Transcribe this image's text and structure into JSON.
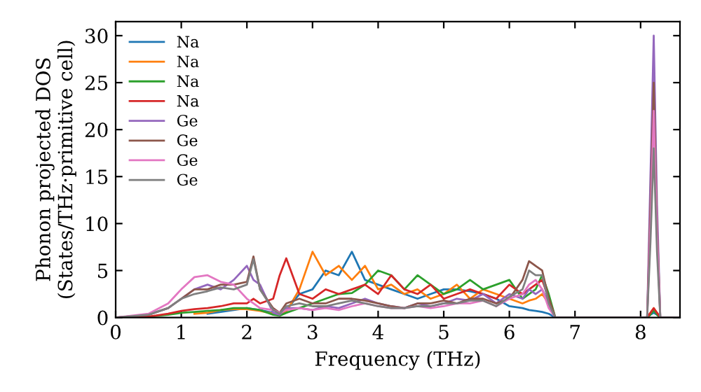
{
  "chart_data": {
    "type": "line",
    "xlabel": "Frequency (THz)",
    "ylabel": "Phonon projected DOS\n(States/THz·primitive cell)",
    "x": [
      0,
      0.5,
      0.8,
      1.0,
      1.2,
      1.4,
      1.6,
      1.8,
      2.0,
      2.1,
      2.2,
      2.4,
      2.5,
      2.6,
      2.8,
      3.0,
      3.2,
      3.4,
      3.6,
      3.8,
      4.0,
      4.2,
      4.4,
      4.6,
      4.8,
      5.0,
      5.2,
      5.4,
      5.6,
      5.8,
      6.0,
      6.2,
      6.3,
      6.4,
      6.5,
      6.6,
      6.7,
      8.0,
      8.1,
      8.15,
      8.2,
      8.25,
      8.3,
      8.6
    ],
    "xlim": [
      0,
      8.6
    ],
    "ylim": [
      0,
      31.5
    ],
    "xticks": [
      0,
      1,
      2,
      3,
      4,
      5,
      6,
      7,
      8
    ],
    "yticks": [
      0,
      5,
      10,
      15,
      20,
      25,
      30
    ],
    "legend": "top left",
    "grid": false,
    "series": [
      {
        "name": "Na",
        "color": "#1f77b4",
        "values": [
          null,
          null,
          null,
          null,
          null,
          0.4,
          0.6,
          0.8,
          1.0,
          0.9,
          0.8,
          0.5,
          0.3,
          0.8,
          2.5,
          3.0,
          5.0,
          4.5,
          7.0,
          4.0,
          3.5,
          3.0,
          2.5,
          2.0,
          2.5,
          3.0,
          3.0,
          2.8,
          2.5,
          2.0,
          1.2,
          1.0,
          0.8,
          0.7,
          0.6,
          0.4,
          0,
          0,
          0,
          0.3,
          0.5,
          0.3,
          0,
          0
        ]
      },
      {
        "name": "Na",
        "color": "#ff7f0e",
        "values": [
          null,
          null,
          null,
          null,
          0.4,
          0.5,
          0.8,
          0.9,
          0.9,
          0.8,
          0.7,
          0.4,
          0.2,
          0.6,
          3.0,
          7.0,
          4.5,
          5.5,
          4.0,
          5.5,
          3.0,
          3.5,
          2.5,
          3.0,
          2.0,
          2.5,
          3.5,
          2.0,
          3.0,
          2.5,
          2.0,
          1.5,
          1.8,
          2.0,
          2.5,
          1.5,
          0,
          0,
          0,
          0.5,
          1.0,
          0.5,
          0,
          0
        ]
      },
      {
        "name": "Na",
        "color": "#2ca02c",
        "values": [
          0,
          0.1,
          0.3,
          0.5,
          0.6,
          0.7,
          0.8,
          1.0,
          1.0,
          0.9,
          0.8,
          0.3,
          0.2,
          0.5,
          1.0,
          1.5,
          2.0,
          2.5,
          2.6,
          3.5,
          5.0,
          4.5,
          3.0,
          4.5,
          3.5,
          2.5,
          3.0,
          4.0,
          3.0,
          3.5,
          4.0,
          2.0,
          2.5,
          3.0,
          4.5,
          2.5,
          0,
          0,
          0,
          0.3,
          0.8,
          0.3,
          0,
          0
        ]
      },
      {
        "name": "Na",
        "color": "#d62728",
        "values": [
          0,
          0.1,
          0.4,
          0.7,
          0.9,
          1.0,
          1.2,
          1.5,
          1.5,
          2.0,
          1.5,
          2.0,
          4.5,
          6.3,
          2.5,
          2.0,
          3.0,
          2.5,
          3.0,
          3.5,
          2.5,
          4.5,
          3.0,
          2.5,
          3.5,
          2.0,
          2.5,
          3.0,
          2.5,
          2.0,
          3.5,
          2.5,
          3.0,
          3.5,
          4.0,
          2.0,
          0,
          0,
          0,
          0.5,
          1.0,
          0.5,
          0,
          0
        ]
      },
      {
        "name": "Ge",
        "color": "#9467bd",
        "values": [
          0,
          0.3,
          1.0,
          2.0,
          3.0,
          3.5,
          3.0,
          4.0,
          5.5,
          4.0,
          3.5,
          0.5,
          0.3,
          1.0,
          1.0,
          0.8,
          1.2,
          1.0,
          1.5,
          2.0,
          1.5,
          1.2,
          1.0,
          1.5,
          1.2,
          1.5,
          2.0,
          1.8,
          2.5,
          1.5,
          2.5,
          2.0,
          3.0,
          2.5,
          3.0,
          1.5,
          0,
          0,
          0,
          15.0,
          30.0,
          12.0,
          0,
          0
        ]
      },
      {
        "name": "Ge",
        "color": "#8c564b",
        "values": [
          0,
          0.3,
          1.0,
          2.0,
          3.0,
          3.0,
          3.5,
          3.5,
          3.8,
          6.5,
          3.0,
          1.0,
          0.5,
          1.5,
          2.0,
          1.5,
          1.5,
          2.0,
          2.0,
          1.8,
          1.5,
          1.2,
          1.0,
          1.5,
          1.5,
          1.8,
          1.5,
          2.0,
          2.0,
          1.5,
          2.0,
          4.0,
          6.0,
          5.5,
          5.0,
          2.0,
          0,
          0,
          0,
          12.0,
          25.0,
          10.0,
          0,
          0
        ]
      },
      {
        "name": "Ge",
        "color": "#e377c2",
        "values": [
          0,
          0.4,
          1.5,
          3.0,
          4.3,
          4.5,
          3.8,
          3.5,
          2.0,
          1.5,
          1.0,
          0.8,
          0.5,
          0.8,
          1.0,
          0.8,
          1.0,
          0.8,
          1.2,
          1.5,
          1.2,
          1.0,
          1.0,
          1.2,
          1.0,
          1.2,
          1.5,
          1.5,
          1.8,
          1.2,
          2.0,
          2.5,
          3.5,
          4.0,
          3.0,
          1.0,
          0,
          0,
          0,
          10.0,
          22.0,
          9.0,
          0,
          0
        ]
      },
      {
        "name": "Ge",
        "color": "#7f7f7f",
        "values": [
          0,
          0.3,
          1.0,
          2.0,
          2.5,
          2.8,
          3.2,
          3.0,
          3.5,
          6.2,
          3.0,
          0.8,
          0.4,
          1.2,
          1.5,
          1.2,
          1.2,
          1.5,
          1.8,
          1.5,
          1.2,
          1.0,
          1.0,
          1.2,
          1.2,
          1.5,
          1.5,
          1.8,
          1.8,
          1.2,
          2.2,
          3.0,
          5.0,
          4.5,
          4.5,
          1.5,
          0,
          0,
          0,
          8.0,
          18.0,
          7.0,
          0,
          0
        ]
      }
    ]
  }
}
